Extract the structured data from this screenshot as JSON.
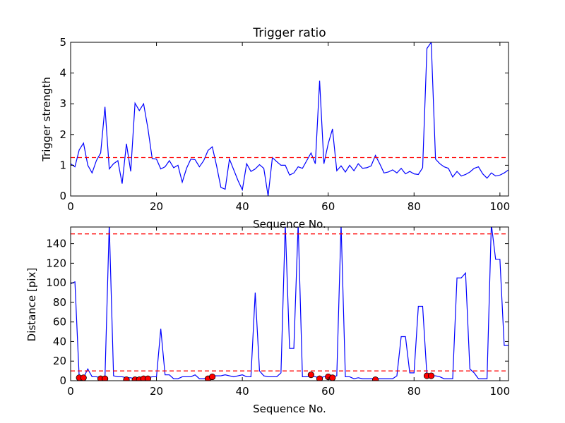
{
  "chart_data": [
    {
      "type": "line",
      "title": "Trigger ratio",
      "xlabel": "Sequence No.",
      "ylabel": "Trigger strength",
      "xlim": [
        0,
        102
      ],
      "ylim": [
        0,
        5
      ],
      "xticks": [
        0,
        20,
        40,
        60,
        80,
        100
      ],
      "yticks": [
        0,
        1,
        2,
        3,
        4,
        5
      ],
      "grid": false,
      "series": [
        {
          "color": "#0000ff",
          "x": [
            0,
            1,
            2,
            3,
            4,
            5,
            6,
            7,
            8,
            9,
            10,
            11,
            12,
            13,
            14,
            15,
            16,
            17,
            18,
            19,
            20,
            21,
            22,
            23,
            24,
            25,
            26,
            27,
            28,
            29,
            30,
            31,
            32,
            33,
            34,
            35,
            36,
            37,
            38,
            39,
            40,
            41,
            42,
            43,
            44,
            45,
            46,
            47,
            48,
            49,
            50,
            51,
            52,
            53,
            54,
            55,
            56,
            57,
            58,
            59,
            60,
            61,
            62,
            63,
            64,
            65,
            66,
            67,
            68,
            69,
            70,
            71,
            72,
            73,
            74,
            75,
            76,
            77,
            78,
            79,
            80,
            81,
            82,
            83,
            84,
            85,
            86,
            87,
            88,
            89,
            90,
            91,
            92,
            93,
            94,
            95,
            96,
            97,
            98,
            99,
            100,
            101,
            102
          ],
          "y": [
            1.05,
            0.95,
            1.5,
            1.72,
            1.0,
            0.75,
            1.15,
            1.4,
            2.9,
            0.88,
            1.05,
            1.15,
            0.4,
            1.7,
            0.8,
            3.02,
            2.78,
            3.0,
            2.2,
            1.22,
            1.2,
            0.88,
            0.95,
            1.15,
            0.92,
            1.0,
            0.45,
            0.9,
            1.2,
            1.18,
            0.95,
            1.15,
            1.48,
            1.6,
            0.98,
            0.28,
            0.22,
            1.2,
            0.85,
            0.5,
            0.2,
            1.05,
            0.8,
            0.88,
            1.02,
            0.9,
            0.0,
            1.25,
            1.12,
            1.0,
            1.0,
            0.68,
            0.75,
            0.95,
            0.9,
            1.15,
            1.4,
            1.05,
            3.75,
            1.05,
            1.7,
            2.18,
            0.82,
            0.98,
            0.78,
            1.0,
            0.82,
            1.05,
            0.9,
            0.92,
            0.98,
            1.32,
            1.05,
            0.75,
            0.78,
            0.85,
            0.75,
            0.9,
            0.72,
            0.8,
            0.72,
            0.7,
            0.92,
            4.8,
            5.0,
            1.2,
            1.05,
            0.95,
            0.9,
            0.62,
            0.8,
            0.65,
            0.7,
            0.78,
            0.9,
            0.95,
            0.72,
            0.58,
            0.75,
            0.65,
            0.68,
            0.75,
            0.85
          ]
        },
        {
          "color": "#ff0000",
          "style": "dashed",
          "x": [
            0,
            102
          ],
          "y": [
            1.25,
            1.25
          ]
        }
      ]
    },
    {
      "type": "line",
      "xlabel": "Sequence No.",
      "ylabel": "Distance [pix]",
      "xlim": [
        0,
        102
      ],
      "ylim": [
        0,
        157
      ],
      "xticks": [
        0,
        20,
        40,
        60,
        80,
        100
      ],
      "yticks": [
        0,
        20,
        40,
        60,
        80,
        100,
        120,
        140
      ],
      "grid": false,
      "series": [
        {
          "color": "#0000ff",
          "x": [
            0,
            1,
            2,
            3,
            4,
            5,
            6,
            7,
            8,
            9,
            10,
            11,
            12,
            13,
            14,
            15,
            16,
            17,
            18,
            19,
            20,
            21,
            22,
            23,
            24,
            25,
            26,
            27,
            28,
            29,
            30,
            31,
            32,
            33,
            34,
            35,
            36,
            37,
            38,
            39,
            40,
            41,
            42,
            43,
            44,
            45,
            46,
            47,
            48,
            49,
            50,
            51,
            52,
            53,
            54,
            55,
            56,
            57,
            58,
            59,
            60,
            61,
            62,
            63,
            64,
            65,
            66,
            67,
            68,
            69,
            70,
            71,
            72,
            73,
            74,
            75,
            76,
            77,
            78,
            79,
            80,
            81,
            82,
            83,
            84,
            85,
            86,
            87,
            88,
            89,
            90,
            91,
            92,
            93,
            94,
            95,
            96,
            97,
            98,
            99,
            100,
            101,
            102
          ],
          "y": [
            99,
            101,
            3,
            3,
            12,
            4,
            4,
            3,
            3,
            160,
            5,
            4,
            4,
            3,
            3,
            2,
            2,
            2,
            3,
            4,
            4,
            53,
            6,
            6,
            2,
            2,
            4,
            4,
            4,
            6,
            2,
            2,
            3,
            5,
            5,
            5,
            6,
            5,
            4,
            5,
            6,
            4,
            4,
            90,
            10,
            5,
            4,
            4,
            4,
            8,
            160,
            33,
            33,
            160,
            4,
            4,
            5,
            4,
            3,
            4,
            4,
            4,
            5,
            160,
            4,
            4,
            2,
            3,
            2,
            2,
            2,
            2,
            2,
            2,
            2,
            2,
            5,
            45,
            45,
            8,
            8,
            76,
            76,
            5,
            5,
            5,
            4,
            2,
            2,
            2,
            105,
            105,
            110,
            12,
            8,
            2,
            2,
            2,
            160,
            124,
            124,
            36,
            36
          ]
        },
        {
          "color": "#ff0000",
          "style": "dashed",
          "x": [
            0,
            102
          ],
          "y": [
            150,
            150
          ]
        },
        {
          "color": "#ff0000",
          "style": "dashed",
          "x": [
            0,
            102
          ],
          "y": [
            10,
            10
          ]
        },
        {
          "color": "#ff0000",
          "style": "markers",
          "x": [
            2,
            3,
            7,
            8,
            13,
            15,
            16,
            17,
            18,
            32,
            33,
            56,
            58,
            60,
            61,
            71,
            83,
            84
          ],
          "y": [
            3,
            3,
            2,
            2,
            1,
            1,
            1,
            2,
            2,
            2,
            4,
            6,
            2,
            4,
            3,
            1,
            5,
            5
          ]
        }
      ]
    }
  ]
}
